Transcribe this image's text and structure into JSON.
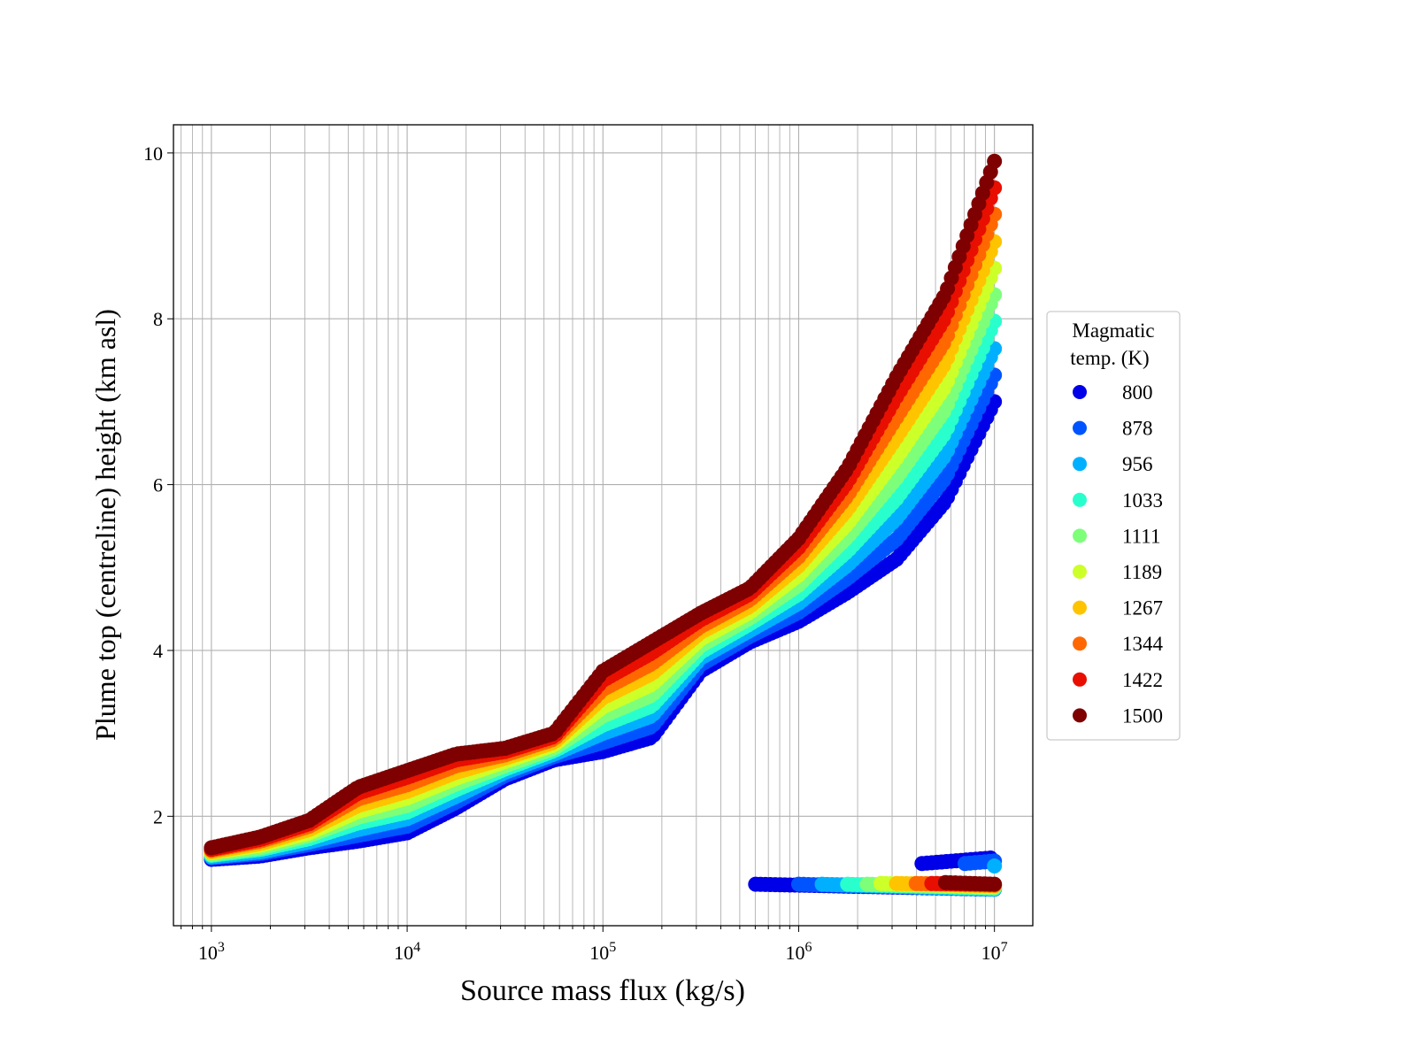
{
  "chart_data": {
    "type": "scatter",
    "title": "",
    "xlabel": "Source mass flux (kg/s)",
    "ylabel": "Plume top (centreline) height (km asl)",
    "xscale": "log",
    "xlim": [
      640,
      15700000
    ],
    "ylim": [
      0.68,
      10.34
    ],
    "xticks": [
      1000,
      10000,
      100000,
      1000000,
      10000000
    ],
    "xtick_labels": [
      {
        "base": "10",
        "exp": "3"
      },
      {
        "base": "10",
        "exp": "4"
      },
      {
        "base": "10",
        "exp": "5"
      },
      {
        "base": "10",
        "exp": "6"
      },
      {
        "base": "10",
        "exp": "7"
      }
    ],
    "yticks": [
      2,
      4,
      6,
      8,
      10
    ],
    "ytick_labels": [
      "2",
      "4",
      "6",
      "8",
      "10"
    ],
    "grid": true,
    "legend": {
      "title_line1": "Magmatic",
      "title_line2": "temp. (K)",
      "placement": "right-outside"
    },
    "log10_x": [
      3,
      3.25,
      3.5,
      3.75,
      4,
      4.25,
      4.5,
      4.75,
      5,
      5.25,
      5.5,
      5.75,
      6,
      6.25,
      6.5,
      6.75,
      7
    ],
    "series": [
      {
        "name": "800",
        "color": "#0000e8",
        "upper_branch": [
          1.48,
          1.52,
          1.62,
          1.7,
          1.8,
          2.1,
          2.45,
          2.68,
          2.78,
          2.95,
          3.75,
          4.1,
          4.35,
          4.7,
          5.1,
          5.8,
          7.0
        ],
        "lower_branch": {
          "log10_x_range": [
            5.78,
            7.0
          ],
          "y": [
            1.18,
            1.12
          ]
        },
        "extra_branch": {
          "log10_x_range": [
            6.63,
            7.0
          ],
          "y": [
            1.43,
            1.5
          ]
        }
      },
      {
        "name": "878",
        "color": "#0054ff",
        "upper_branch": [
          1.5,
          1.55,
          1.66,
          1.77,
          1.88,
          2.17,
          2.49,
          2.72,
          2.89,
          3.08,
          3.83,
          4.17,
          4.46,
          4.87,
          5.34,
          6.08,
          7.32
        ],
        "lower_branch": {
          "log10_x_range": [
            6.0,
            7.0
          ],
          "y": [
            1.18,
            1.12
          ]
        },
        "extra_branch": {
          "log10_x_range": [
            6.85,
            7.0
          ],
          "y": [
            1.43,
            1.46
          ]
        }
      },
      {
        "name": "956",
        "color": "#00b0ff",
        "upper_branch": [
          1.51,
          1.57,
          1.69,
          1.84,
          1.97,
          2.24,
          2.53,
          2.75,
          3.0,
          3.21,
          3.91,
          4.24,
          4.57,
          5.03,
          5.59,
          6.36,
          7.64
        ],
        "lower_branch": {
          "log10_x_range": [
            6.12,
            7.0
          ],
          "y": [
            1.18,
            1.12
          ]
        },
        "extra_branch": {
          "log10_x_range": [
            7.0,
            7.0
          ],
          "y": [
            1.4,
            1.4
          ]
        }
      },
      {
        "name": "1033",
        "color": "#29ffcd",
        "upper_branch": [
          1.53,
          1.6,
          1.73,
          1.92,
          2.05,
          2.32,
          2.57,
          2.79,
          3.1,
          3.33,
          3.98,
          4.32,
          4.68,
          5.2,
          5.83,
          6.63,
          7.97
        ],
        "lower_branch": {
          "log10_x_range": [
            6.25,
            7.0
          ],
          "y": [
            1.18,
            1.13
          ]
        }
      },
      {
        "name": "1111",
        "color": "#7dff7a",
        "upper_branch": [
          1.54,
          1.62,
          1.77,
          1.99,
          2.13,
          2.39,
          2.61,
          2.82,
          3.21,
          3.46,
          4.06,
          4.39,
          4.79,
          5.37,
          6.08,
          6.91,
          8.29
        ],
        "lower_branch": {
          "log10_x_range": [
            6.35,
            7.0
          ],
          "y": [
            1.18,
            1.14
          ]
        }
      },
      {
        "name": "1189",
        "color": "#cdff29",
        "upper_branch": [
          1.56,
          1.65,
          1.8,
          2.06,
          2.22,
          2.46,
          2.66,
          2.86,
          3.32,
          3.59,
          4.14,
          4.46,
          4.91,
          5.53,
          6.32,
          7.19,
          8.61
        ],
        "lower_branch": {
          "log10_x_range": [
            6.42,
            7.0
          ],
          "y": [
            1.19,
            1.15
          ]
        }
      },
      {
        "name": "1267",
        "color": "#ffc400",
        "upper_branch": [
          1.57,
          1.67,
          1.84,
          2.13,
          2.3,
          2.53,
          2.7,
          2.89,
          3.43,
          3.72,
          4.22,
          4.53,
          5.02,
          5.7,
          6.57,
          7.47,
          8.93
        ],
        "lower_branch": {
          "log10_x_range": [
            6.5,
            7.0
          ],
          "y": [
            1.19,
            1.16
          ]
        }
      },
      {
        "name": "1344",
        "color": "#ff6800",
        "upper_branch": [
          1.59,
          1.7,
          1.88,
          2.21,
          2.38,
          2.61,
          2.74,
          2.93,
          3.53,
          3.84,
          4.29,
          4.61,
          5.13,
          5.87,
          6.81,
          7.74,
          9.26
        ],
        "lower_branch": {
          "log10_x_range": [
            6.6,
            7.0
          ],
          "y": [
            1.19,
            1.17
          ]
        }
      },
      {
        "name": "1422",
        "color": "#e80f00",
        "upper_branch": [
          1.6,
          1.72,
          1.91,
          2.28,
          2.47,
          2.68,
          2.78,
          2.96,
          3.64,
          3.97,
          4.37,
          4.68,
          5.24,
          6.03,
          7.06,
          8.02,
          9.58
        ],
        "lower_branch": {
          "log10_x_range": [
            6.68,
            7.0
          ],
          "y": [
            1.19,
            1.18
          ]
        }
      },
      {
        "name": "1500",
        "color": "#7f0000",
        "upper_branch": [
          1.62,
          1.75,
          1.95,
          2.35,
          2.55,
          2.75,
          2.82,
          3.0,
          3.75,
          4.1,
          4.45,
          4.75,
          5.35,
          6.2,
          7.3,
          8.3,
          9.9
        ],
        "lower_branch": {
          "log10_x_range": [
            6.75,
            7.0
          ],
          "y": [
            1.2,
            1.18
          ]
        }
      }
    ]
  }
}
